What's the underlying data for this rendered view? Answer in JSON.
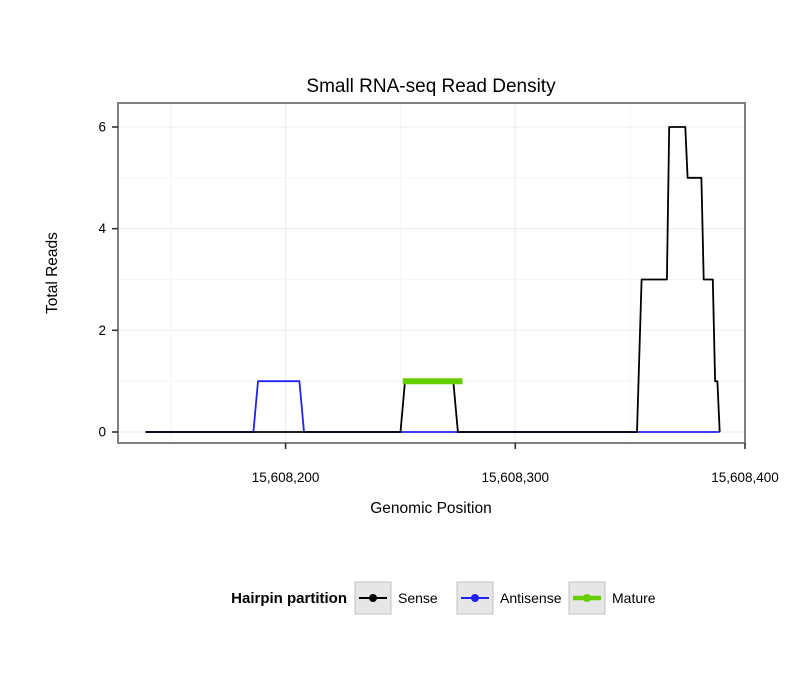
{
  "chart_data": {
    "type": "line",
    "title": "Small RNA-seq Read Density",
    "xlabel": "Genomic Position",
    "ylabel": "Total Reads",
    "x_axis": {
      "ticks": [
        {
          "value": 15608200,
          "label": "15,608,200"
        },
        {
          "value": 15608300,
          "label": "15,608,300"
        },
        {
          "value": 15608400,
          "label": "15,608,400"
        }
      ],
      "minor": [
        15608150,
        15608250,
        15608350
      ]
    },
    "y_axis": {
      "range": [
        0,
        6
      ],
      "ticks": [
        {
          "value": 0,
          "label": "0"
        },
        {
          "value": 2,
          "label": "2"
        },
        {
          "value": 4,
          "label": "4"
        },
        {
          "value": 6,
          "label": "6"
        }
      ],
      "minor": [
        1,
        3,
        5
      ]
    },
    "legend": {
      "title": "Hairpin partition",
      "entries": [
        {
          "label": "Sense",
          "color": "#000000",
          "key_line_width": 2
        },
        {
          "label": "Antisense",
          "color": "#2222EE",
          "key_line_width": 2
        },
        {
          "label": "Mature",
          "color": "#66CD00",
          "key_line_width": 4.5
        }
      ]
    },
    "series": [
      {
        "name": "Antisense",
        "color": "#2222EE",
        "width": 1.8,
        "points": [
          [
            15608139,
            0
          ],
          [
            15608186,
            0
          ],
          [
            15608188,
            1
          ],
          [
            15608206,
            1
          ],
          [
            15608208,
            0
          ],
          [
            15608389,
            0
          ]
        ]
      },
      {
        "name": "Sense",
        "color": "#000000",
        "width": 1.8,
        "points": [
          [
            15608139,
            0
          ],
          [
            15608250,
            0
          ],
          [
            15608252,
            1
          ],
          [
            15608273,
            1
          ],
          [
            15608275,
            0
          ],
          [
            15608353,
            0
          ],
          [
            15608355,
            3
          ],
          [
            15608366,
            3
          ],
          [
            15608367,
            6
          ],
          [
            15608374,
            6
          ],
          [
            15608375,
            5
          ],
          [
            15608381,
            5
          ],
          [
            15608382,
            3
          ],
          [
            15608386,
            3
          ],
          [
            15608387,
            1
          ],
          [
            15608388,
            1
          ],
          [
            15608389,
            0
          ]
        ]
      },
      {
        "name": "Mature",
        "color": "#66CD00",
        "width": 6,
        "points": [
          [
            15608251,
            1
          ],
          [
            15608277,
            1
          ]
        ]
      }
    ]
  }
}
